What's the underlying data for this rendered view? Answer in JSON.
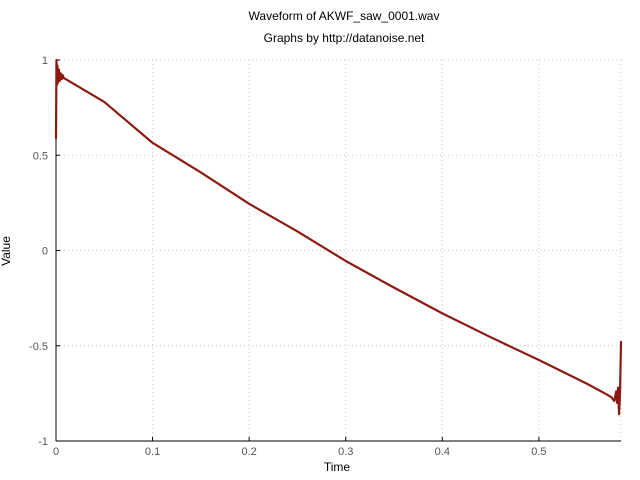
{
  "chart_data": {
    "type": "line",
    "title": "Waveform of AKWF_saw_0001.wav",
    "subtitle": "Graphs by http://datanoise.net",
    "xlabel": "Time",
    "ylabel": "Value",
    "xlim": [
      0,
      0.585
    ],
    "ylim": [
      -1,
      1
    ],
    "xticks": [
      0,
      0.1,
      0.2,
      0.3,
      0.4,
      0.5
    ],
    "xtick_labels": [
      "0",
      "0.1",
      "0.2",
      "0.3",
      "0.4",
      "0.5"
    ],
    "yticks": [
      -1,
      -0.5,
      0,
      0.5,
      1
    ],
    "ytick_labels": [
      "-1",
      "-0.5",
      "0",
      "0.5",
      "1"
    ],
    "grid": true,
    "series": [
      {
        "color": "#8b1a10",
        "x": [
          0,
          0.0005,
          0.001,
          0.0015,
          0.002,
          0.003,
          0.004,
          0.005,
          0.006,
          0.007,
          0.008,
          0.01,
          0.02,
          0.05,
          0.1,
          0.15,
          0.2,
          0.25,
          0.3,
          0.35,
          0.4,
          0.45,
          0.5,
          0.55,
          0.57,
          0.575,
          0.578,
          0.58,
          0.581,
          0.582,
          0.583,
          0.584,
          0.585
        ],
        "y": [
          0.59,
          1.0,
          0.87,
          0.97,
          0.88,
          0.95,
          0.89,
          0.93,
          0.9,
          0.92,
          0.905,
          0.9,
          0.87,
          0.78,
          0.565,
          0.41,
          0.245,
          0.1,
          -0.055,
          -0.195,
          -0.33,
          -0.455,
          -0.575,
          -0.7,
          -0.755,
          -0.77,
          -0.79,
          -0.74,
          -0.8,
          -0.72,
          -0.86,
          -0.75,
          -0.48
        ]
      }
    ]
  }
}
